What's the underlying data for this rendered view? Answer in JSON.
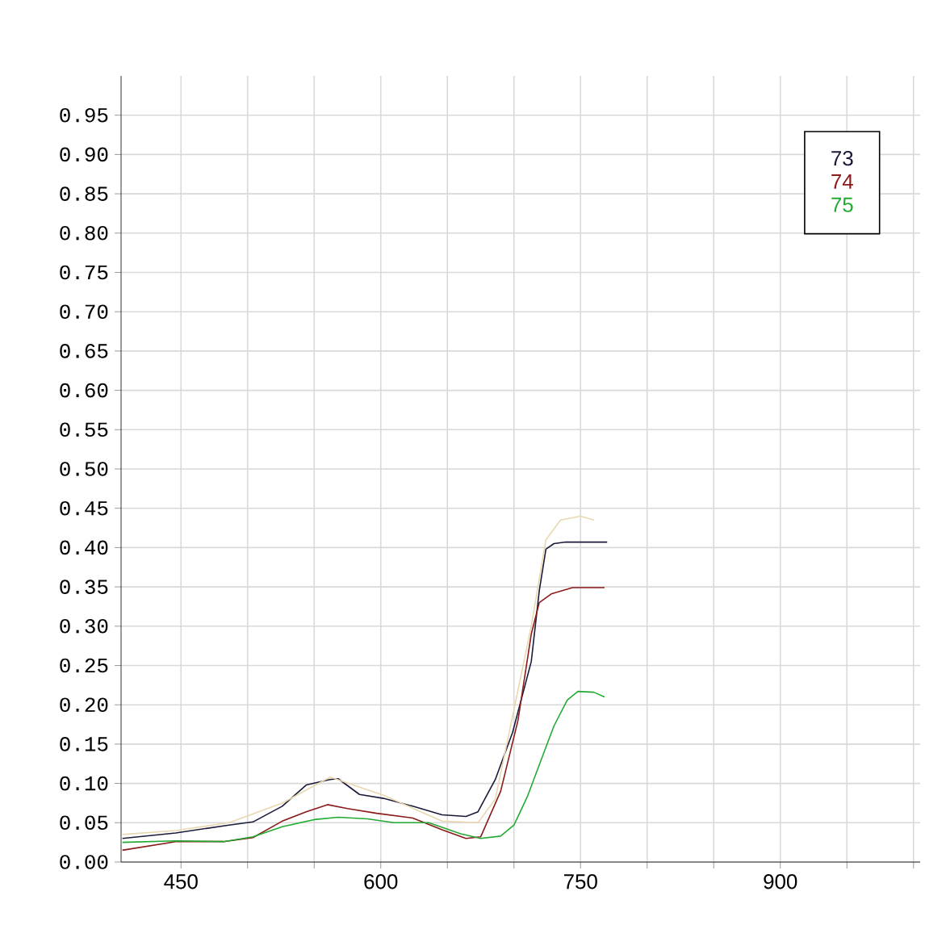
{
  "chart_data": {
    "type": "line",
    "xlim": [
      405,
      1005
    ],
    "ylim": [
      0,
      1.0
    ],
    "xticks": [
      450,
      {
        "value": 500,
        "label": null
      },
      {
        "value": 550,
        "label": null
      },
      600,
      {
        "value": 650,
        "label": null
      },
      {
        "value": 700,
        "label": null
      },
      750,
      {
        "value": 800,
        "label": null
      },
      {
        "value": 850,
        "label": null
      },
      900,
      {
        "value": 950,
        "label": null
      },
      {
        "value": 1000,
        "label": null
      }
    ],
    "yticks": [
      {
        "value": 0,
        "label": "0.00"
      },
      {
        "value": 0.05,
        "label": "0.05"
      },
      {
        "value": 0.1,
        "label": "0.10"
      },
      {
        "value": 0.15,
        "label": "0.15"
      },
      {
        "value": 0.2,
        "label": "0.20"
      },
      {
        "value": 0.25,
        "label": "0.25"
      },
      {
        "value": 0.3,
        "label": "0.30"
      },
      {
        "value": 0.35,
        "label": "0.35"
      },
      {
        "value": 0.4,
        "label": "0.40"
      },
      {
        "value": 0.45,
        "label": "0.45"
      },
      {
        "value": 0.5,
        "label": "0.50"
      },
      {
        "value": 0.55,
        "label": "0.55"
      },
      {
        "value": 0.6,
        "label": "0.60"
      },
      {
        "value": 0.65,
        "label": "0.65"
      },
      {
        "value": 0.7,
        "label": "0.70"
      },
      {
        "value": 0.75,
        "label": "0.75"
      },
      {
        "value": 0.8,
        "label": "0.80"
      },
      {
        "value": 0.85,
        "label": "0.85"
      },
      {
        "value": 0.9,
        "label": "0.90"
      },
      {
        "value": 0.95,
        "label": "0.95"
      }
    ],
    "grid": true,
    "legend": "top right",
    "marker": "none",
    "line_style": "solid",
    "series": [
      {
        "name": "73",
        "color": "#1a1a3a",
        "x": [
          406,
          446,
          486,
          504,
          526,
          544,
          562,
          568,
          584,
          602,
          624,
          646,
          664,
          673,
          686,
          699,
          713,
          719,
          724,
          730,
          739,
          770
        ],
        "values": [
          0.03,
          0.037,
          0.047,
          0.051,
          0.071,
          0.098,
          0.105,
          0.106,
          0.086,
          0.081,
          0.071,
          0.06,
          0.058,
          0.064,
          0.105,
          0.165,
          0.255,
          0.345,
          0.398,
          0.405,
          0.407,
          0.407
        ]
      },
      {
        "name": "74",
        "color": "#8b1a1a",
        "x": [
          406,
          446,
          482,
          504,
          526,
          544,
          560,
          575,
          597,
          624,
          646,
          664,
          675,
          690,
          703,
          713,
          719,
          728,
          744,
          768
        ],
        "values": [
          0.015,
          0.026,
          0.026,
          0.031,
          0.052,
          0.064,
          0.073,
          0.068,
          0.062,
          0.056,
          0.041,
          0.03,
          0.032,
          0.09,
          0.18,
          0.29,
          0.33,
          0.341,
          0.349,
          0.349
        ]
      },
      {
        "name": "75",
        "color": "#22aa33",
        "x": [
          406,
          446,
          482,
          504,
          526,
          550,
          568,
          590,
          610,
          636,
          660,
          675,
          690,
          700,
          710,
          720,
          730,
          740,
          748,
          760,
          768
        ],
        "values": [
          0.025,
          0.027,
          0.026,
          0.032,
          0.045,
          0.054,
          0.057,
          0.055,
          0.05,
          0.05,
          0.036,
          0.03,
          0.033,
          0.047,
          0.083,
          0.128,
          0.173,
          0.206,
          0.217,
          0.216,
          0.21
        ]
      },
      {
        "color": "#e8d8b0",
        "x": [
          406,
          446,
          486,
          526,
          562,
          602,
          646,
          673,
          686,
          713,
          724,
          735,
          750,
          760
        ],
        "values": [
          0.035,
          0.04,
          0.05,
          0.075,
          0.108,
          0.085,
          0.052,
          0.05,
          0.08,
          0.3,
          0.41,
          0.435,
          0.44,
          0.435
        ]
      }
    ]
  }
}
